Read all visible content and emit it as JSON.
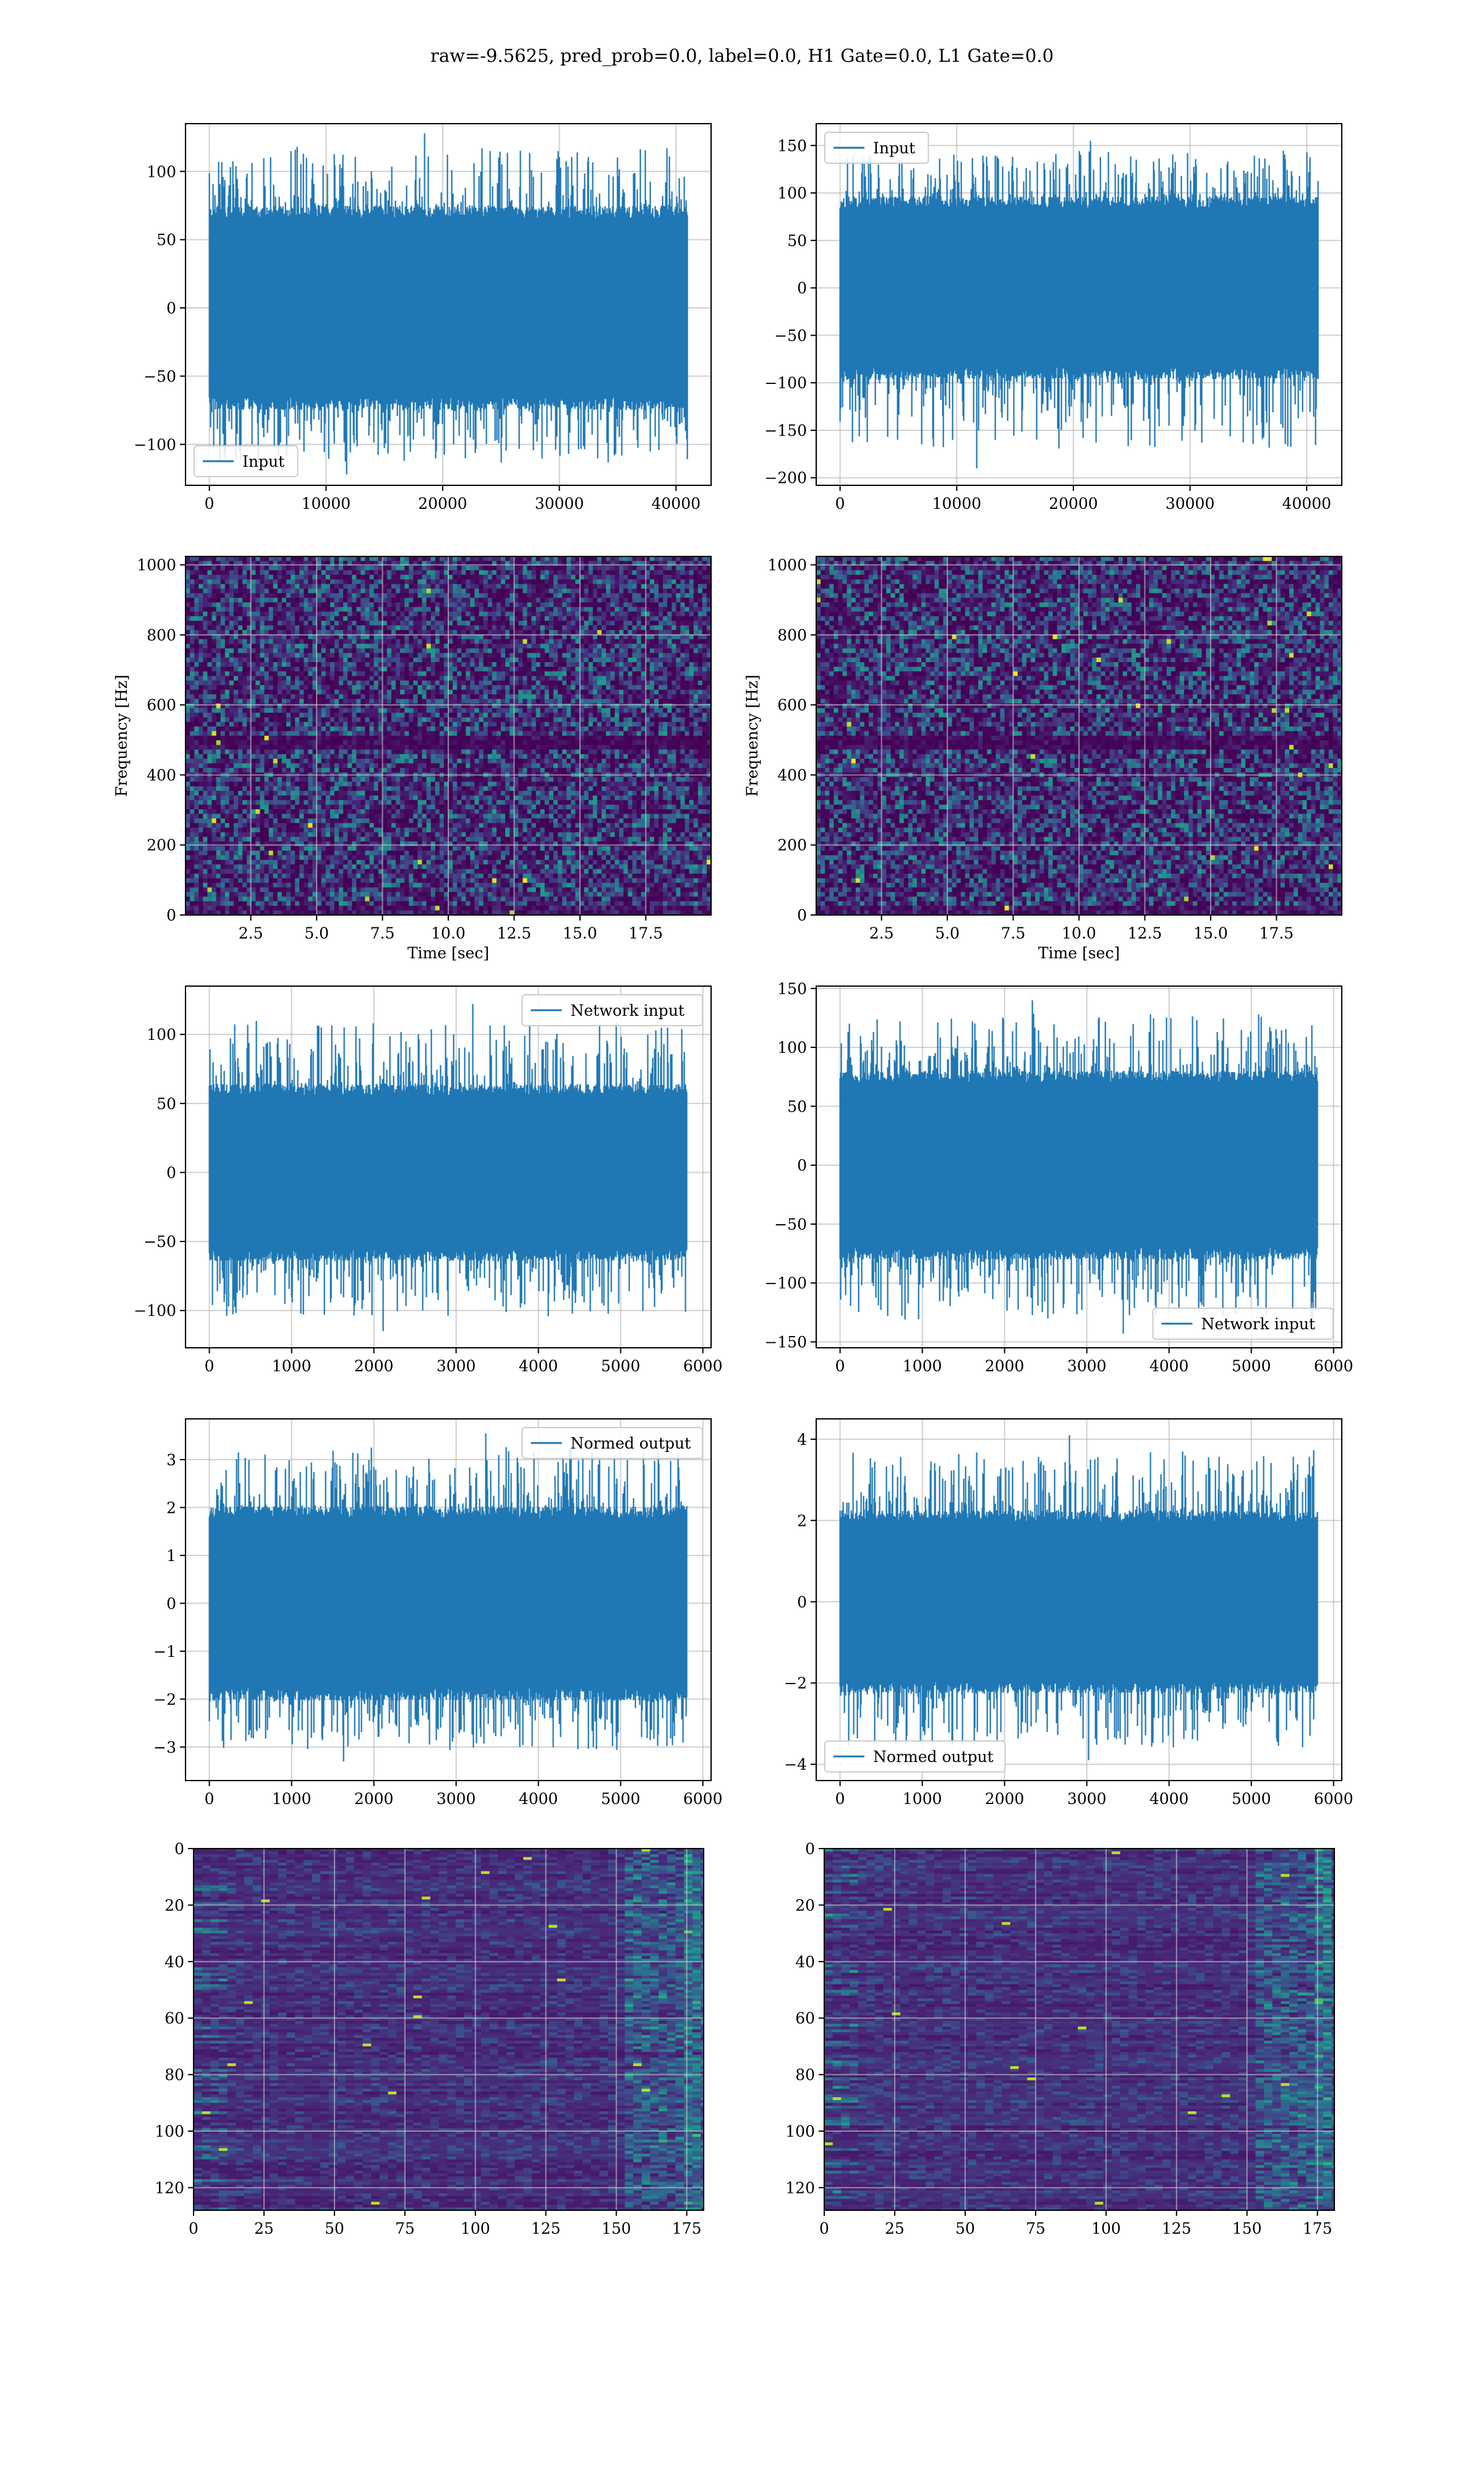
{
  "figure": {
    "title": "raw=-9.5625, pred_prob=0.0, label=0.0, H1 Gate=0.0, L1 Gate=0.0"
  },
  "colors": {
    "line": "#1f77b4",
    "grid": "#b0b0b0",
    "viridis_dark": "#440154",
    "viridis_mid": "#31688e",
    "viridis_teal": "#21918c",
    "viridis_green": "#5ec962",
    "viridis_yellow": "#fde725"
  },
  "chart_data": [
    {
      "id": "input-h1",
      "type": "line",
      "title": "",
      "xlabel": "",
      "ylabel": "",
      "xlim": [
        -2048,
        43008
      ],
      "ylim": [
        -130,
        135
      ],
      "xticks": [
        0,
        10000,
        20000,
        30000,
        40000
      ],
      "yticks": [
        -100,
        -50,
        0,
        50,
        100
      ],
      "grid": true,
      "legend_position": "lower-left",
      "series": [
        {
          "name": "Input",
          "n_points": 40960,
          "envelope_typical": 70,
          "envelope_peak": 128,
          "min": -122
        }
      ]
    },
    {
      "id": "input-l1",
      "type": "line",
      "title": "",
      "xlabel": "",
      "ylabel": "",
      "xlim": [
        -2048,
        43008
      ],
      "ylim": [
        -208,
        173
      ],
      "xticks": [
        0,
        10000,
        20000,
        30000,
        40000
      ],
      "yticks": [
        -200,
        -150,
        -100,
        -50,
        0,
        50,
        100,
        150
      ],
      "grid": true,
      "legend_position": "upper-left",
      "series": [
        {
          "name": "Input",
          "n_points": 40960,
          "envelope_typical": 90,
          "envelope_peak": 155,
          "min": -190
        }
      ]
    },
    {
      "id": "spectrogram-h1",
      "type": "heatmap",
      "title": "",
      "xlabel": "Time [sec]",
      "ylabel": "Frequency [Hz]",
      "xlim": [
        0.02,
        19.98
      ],
      "ylim": [
        0,
        1024
      ],
      "xticks": [
        2.5,
        5.0,
        7.5,
        10.0,
        12.5,
        15.0,
        17.5
      ],
      "xtick_labels": [
        "2.5",
        "5.0",
        "7.5",
        "10.0",
        "12.5",
        "15.0",
        "17.5"
      ],
      "yticks": [
        0,
        200,
        400,
        600,
        800,
        1000
      ],
      "grid": true,
      "colormap": "viridis"
    },
    {
      "id": "spectrogram-l1",
      "type": "heatmap",
      "title": "",
      "xlabel": "Time [sec]",
      "ylabel": "Frequency [Hz]",
      "xlim": [
        0.02,
        19.98
      ],
      "ylim": [
        0,
        1024
      ],
      "xticks": [
        2.5,
        5.0,
        7.5,
        10.0,
        12.5,
        15.0,
        17.5
      ],
      "xtick_labels": [
        "2.5",
        "5.0",
        "7.5",
        "10.0",
        "12.5",
        "15.0",
        "17.5"
      ],
      "yticks": [
        0,
        200,
        400,
        600,
        800,
        1000
      ],
      "grid": true,
      "colormap": "viridis"
    },
    {
      "id": "network-input-h1",
      "type": "line",
      "title": "",
      "xlabel": "",
      "ylabel": "",
      "xlim": [
        -290,
        6100
      ],
      "ylim": [
        -127,
        135
      ],
      "xticks": [
        0,
        1000,
        2000,
        3000,
        4000,
        5000,
        6000
      ],
      "yticks": [
        -100,
        -50,
        0,
        50,
        100
      ],
      "grid": true,
      "legend_position": "upper-right",
      "series": [
        {
          "name": "Network input",
          "n_points": 5800,
          "envelope_typical": 60,
          "envelope_peak": 122,
          "min": -115
        }
      ]
    },
    {
      "id": "network-input-l1",
      "type": "line",
      "title": "",
      "xlabel": "",
      "ylabel": "",
      "xlim": [
        -290,
        6100
      ],
      "ylim": [
        -155,
        152
      ],
      "xticks": [
        0,
        1000,
        2000,
        3000,
        4000,
        5000,
        6000
      ],
      "yticks": [
        -150,
        -100,
        -50,
        0,
        50,
        100,
        150
      ],
      "grid": true,
      "legend_position": "lower-right",
      "series": [
        {
          "name": "Network input",
          "n_points": 5800,
          "envelope_typical": 75,
          "envelope_peak": 140,
          "min": -143
        }
      ]
    },
    {
      "id": "normed-output-h1",
      "type": "line",
      "title": "",
      "xlabel": "",
      "ylabel": "",
      "xlim": [
        -290,
        6100
      ],
      "ylim": [
        -3.7,
        3.85
      ],
      "xticks": [
        0,
        1000,
        2000,
        3000,
        4000,
        5000,
        6000
      ],
      "yticks": [
        -3,
        -2,
        -1,
        0,
        1,
        2,
        3
      ],
      "grid": true,
      "legend_position": "upper-right",
      "series": [
        {
          "name": "Normed output",
          "n_points": 5800,
          "envelope_typical": 1.9,
          "envelope_peak": 3.55,
          "min": -3.3
        }
      ]
    },
    {
      "id": "normed-output-l1",
      "type": "line",
      "title": "",
      "xlabel": "",
      "ylabel": "",
      "xlim": [
        -290,
        6100
      ],
      "ylim": [
        -4.4,
        4.5
      ],
      "xticks": [
        0,
        1000,
        2000,
        3000,
        4000,
        5000,
        6000
      ],
      "yticks": [
        -4,
        -2,
        0,
        2,
        4
      ],
      "grid": true,
      "legend_position": "lower-left",
      "series": [
        {
          "name": "Normed output",
          "n_points": 5800,
          "envelope_typical": 2.1,
          "envelope_peak": 4.1,
          "min": -3.9
        }
      ]
    },
    {
      "id": "feature-map-h1",
      "type": "heatmap",
      "title": "",
      "xlabel": "",
      "ylabel": "",
      "xlim": [
        0,
        181
      ],
      "ylim": [
        128,
        0
      ],
      "y_inverted": true,
      "xticks": [
        0,
        25,
        50,
        75,
        100,
        125,
        150,
        175
      ],
      "yticks": [
        0,
        20,
        40,
        60,
        80,
        100,
        120
      ],
      "grid": true,
      "colormap": "viridis"
    },
    {
      "id": "feature-map-l1",
      "type": "heatmap",
      "title": "",
      "xlabel": "",
      "ylabel": "",
      "xlim": [
        0,
        181
      ],
      "ylim": [
        128,
        0
      ],
      "y_inverted": true,
      "xticks": [
        0,
        25,
        50,
        75,
        100,
        125,
        150,
        175
      ],
      "yticks": [
        0,
        20,
        40,
        60,
        80,
        100,
        120
      ],
      "grid": true,
      "colormap": "viridis"
    }
  ]
}
